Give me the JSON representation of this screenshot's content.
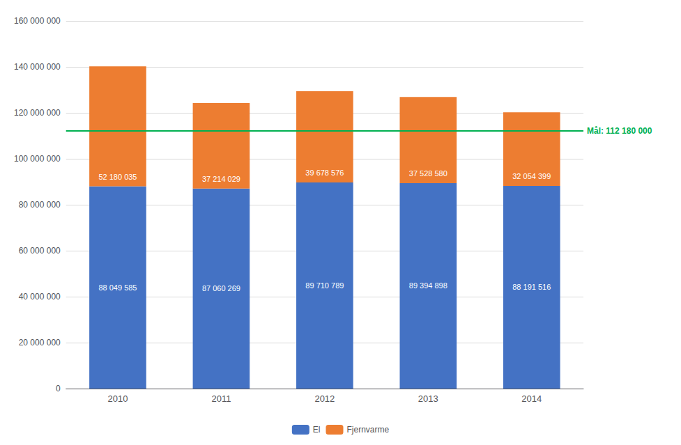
{
  "chart_data": {
    "type": "bar",
    "stacked": true,
    "categories": [
      "2010",
      "2011",
      "2012",
      "2013",
      "2014"
    ],
    "series": [
      {
        "name": "El",
        "color": "#4472C4",
        "values": [
          88049585,
          87060269,
          89710789,
          89394898,
          88191516
        ],
        "value_labels": [
          "88 049 585",
          "87 060 269",
          "89 710 789",
          "89 394 898",
          "88 191 516"
        ]
      },
      {
        "name": "Fjernvarme",
        "color": "#ED7D31",
        "values": [
          52180035,
          37214029,
          39678576,
          37528580,
          32054399
        ],
        "value_labels": [
          "52 180 035",
          "37 214 029",
          "39 678 576",
          "37 528 580",
          "32 054 399"
        ]
      }
    ],
    "data_labels": true,
    "ylim": [
      0,
      160000000
    ],
    "yticks": [
      0,
      {
        "value": 20000000,
        "label": "20 000 000"
      },
      {
        "value": 40000000,
        "label": "40 000 000"
      },
      {
        "value": 60000000,
        "label": "60 000 000"
      },
      {
        "value": 80000000,
        "label": "80 000 000"
      },
      {
        "value": 100000000,
        "label": "100 000 000"
      },
      {
        "value": 120000000,
        "label": "120 000 000"
      },
      {
        "value": 140000000,
        "label": "140 000 000"
      },
      {
        "value": 160000000,
        "label": "160 000 000"
      }
    ],
    "annotations": [
      {
        "type": "hline",
        "y": 112180000,
        "text": "Mål: 112 180 000",
        "color": "#00B050"
      }
    ],
    "grid": true,
    "legend": "bottom"
  }
}
